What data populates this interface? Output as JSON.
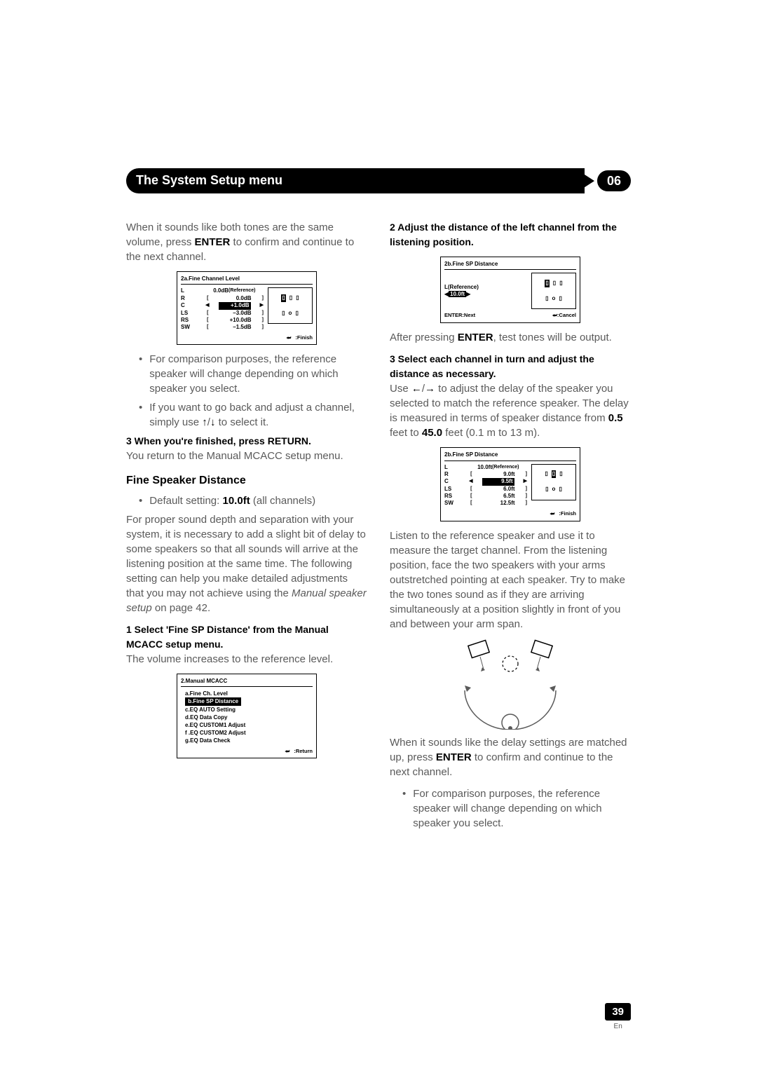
{
  "header": {
    "title": "The System Setup menu",
    "chapter": "06"
  },
  "left": {
    "intro": {
      "t1": "When it sounds like both tones are the same volume, press ",
      "enter": "ENTER",
      "t2": " to confirm and continue to the next channel."
    },
    "osd1": {
      "title": "2a.Fine  Channel  Level",
      "rows": [
        {
          "ch": "L",
          "val": "0.0dB",
          "ref": "(Reference)"
        },
        {
          "ch": "R",
          "val": "0.0dB",
          "box": true
        },
        {
          "ch": "C",
          "val": "+1.0dB",
          "hl": true
        },
        {
          "ch": "LS",
          "val": "–3.0dB",
          "box": true
        },
        {
          "ch": "RS",
          "val": "+10.0dB",
          "box": true
        },
        {
          "ch": "SW",
          "val": "–1.5dB",
          "box": true
        }
      ],
      "finish": ":Finish",
      "speakers": {
        "top": [
          "▯",
          "▯",
          "▯"
        ],
        "mid": [
          "▯",
          "o",
          "▯"
        ],
        "sel_index": 1
      }
    },
    "bul1": "For comparison purposes, the reference speaker will change depending on which speaker you select.",
    "bul2_a": "If you want to go back and adjust a channel, simply use ",
    "bul2_b": " to select it.",
    "step3": "3   When you're finished, press RETURN.",
    "step3_body": "You return to the Manual MCACC setup menu.",
    "h2": "Fine Speaker Distance",
    "default": {
      "a": "Default setting: ",
      "b": "10.0ft",
      "c": " (all channels)"
    },
    "p2": {
      "a": "For proper sound depth and separation with your system, it is necessary to add a slight bit of delay to some speakers so that all sounds will arrive at the listening position at the same time. The following setting can help you make detailed adjustments that you may not achieve using the ",
      "i": "Manual speaker setup",
      "b": " on page 42."
    },
    "step1": "1   Select 'Fine SP Distance' from the Manual MCACC setup menu.",
    "step1_body": "The volume increases to the reference level.",
    "osd2": {
      "title": "2.Manual  MCACC",
      "items": [
        "a.Fine  Ch.  Level",
        "b.Fine  SP  Distance",
        "c.EQ  AUTO  Setting",
        "d.EQ  Data  Copy",
        "e.EQ  CUSTOM1  Adjust",
        "f .EQ  CUSTOM2  Adjust",
        "g.EQ  Data Check"
      ],
      "sel": 1,
      "return": ":Return"
    }
  },
  "right": {
    "step2": "2   Adjust the distance of the left channel from the listening position.",
    "osd3": {
      "title": "2b.Fine  SP  Distance",
      "label": "L(Reference)",
      "val": "10.0ft",
      "next": "ENTER:Next",
      "cancel": ":Cancel",
      "speakers": {
        "top": [
          "▯",
          "▯",
          "▯"
        ],
        "mid": [
          "▯",
          "o",
          "▯"
        ],
        "sel_index": 0
      }
    },
    "after": {
      "a": "After pressing ",
      "b": "ENTER",
      "c": ", test tones will be output."
    },
    "step3": "3   Select each channel in turn and adjust the distance as necessary.",
    "p1": {
      "a": "Use ",
      "b": " to adjust the delay of the speaker you selected to match the reference speaker. The delay is measured in terms of speaker distance from ",
      "c": "0.5",
      "d": " feet to ",
      "e": "45.0",
      "f": " feet (0.1 m to 13 m)."
    },
    "osd4": {
      "title": "2b.Fine  SP  Distance",
      "rows": [
        {
          "ch": "L",
          "val": "10.0ft",
          "ref": "(Reference)"
        },
        {
          "ch": "R",
          "val": "9.0ft",
          "box": true
        },
        {
          "ch": "C",
          "val": "9.5ft",
          "hl": true
        },
        {
          "ch": "LS",
          "val": "6.0ft",
          "box": true
        },
        {
          "ch": "RS",
          "val": "6.5ft",
          "box": true
        },
        {
          "ch": "SW",
          "val": "12.5ft",
          "box": true
        }
      ],
      "finish": ":Finish",
      "speakers": {
        "top": [
          "▯",
          "▯",
          "▯"
        ],
        "mid": [
          "▯",
          "o",
          "▯"
        ],
        "sel_index": 1
      }
    },
    "p2": "Listen to the reference speaker and use it to measure the target channel. From the listening position, face the two speakers with your arms outstretched pointing at each speaker. Try to make the two tones sound as if they are arriving simultaneously at a position slightly in front of you and between your arm span.",
    "p3": {
      "a": "When it sounds like the delay settings are matched up, press ",
      "b": "ENTER",
      "c": " to confirm and continue to the next channel."
    },
    "bul1": "For comparison purposes, the reference speaker will change depending on which speaker you select."
  },
  "page": {
    "num": "39",
    "lang": "En"
  },
  "colors": {
    "black": "#000000",
    "grey": "#5a5a5a",
    "white": "#ffffff"
  }
}
